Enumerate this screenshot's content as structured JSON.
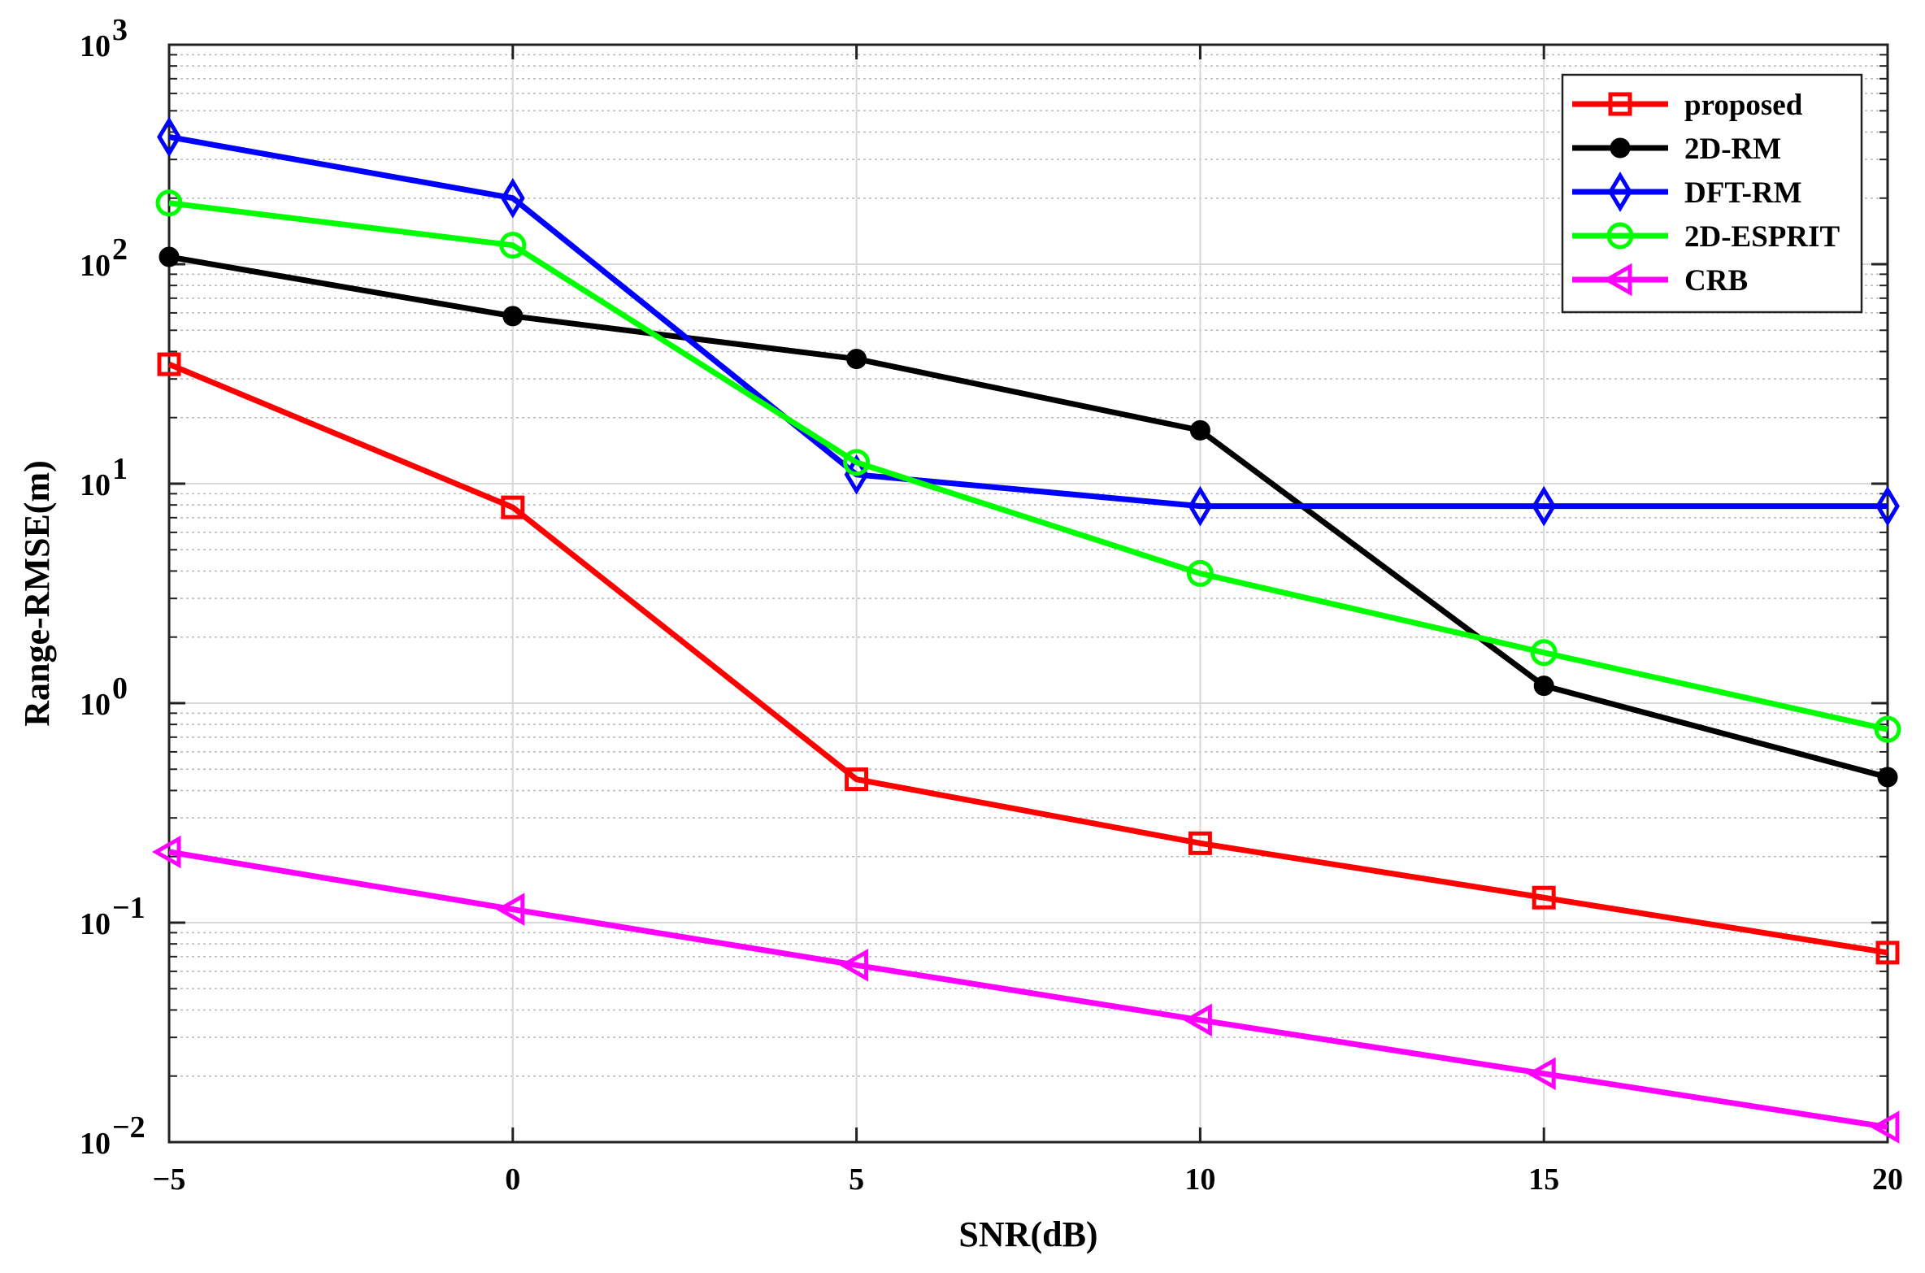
{
  "chart_data": {
    "type": "line",
    "title": "",
    "xlabel": "SNR(dB)",
    "ylabel": "Range-RMSE(m)",
    "x": [
      -5,
      0,
      5,
      10,
      15,
      20
    ],
    "xlim": [
      -5,
      20
    ],
    "xticks": [
      "−5",
      "0",
      "5",
      "10",
      "15",
      "20"
    ],
    "y_scale": "log",
    "ylim": [
      0.01,
      1000
    ],
    "yticks": [
      {
        "value": 0.01,
        "base": "10",
        "exp": "−2"
      },
      {
        "value": 0.1,
        "base": "10",
        "exp": "−1"
      },
      {
        "value": 1,
        "base": "10",
        "exp": "0"
      },
      {
        "value": 10,
        "base": "10",
        "exp": "1"
      },
      {
        "value": 100,
        "base": "10",
        "exp": "2"
      },
      {
        "value": 1000,
        "base": "10",
        "exp": "3"
      }
    ],
    "grid": true,
    "legend_position": "top-right",
    "series": [
      {
        "name": "proposed",
        "color": "#ff0000",
        "marker": "square",
        "values": [
          35,
          7.8,
          0.45,
          0.23,
          0.13,
          0.073
        ]
      },
      {
        "name": "2D-RM",
        "color": "#000000",
        "marker": "filled-circle",
        "values": [
          108,
          58,
          37,
          17.5,
          1.2,
          0.46
        ]
      },
      {
        "name": "DFT-RM",
        "color": "#0000ff",
        "marker": "diamond",
        "values": [
          380,
          200,
          11,
          7.9,
          7.9,
          7.9
        ]
      },
      {
        "name": "2D-ESPRIT",
        "color": "#00ff00",
        "marker": "circle",
        "values": [
          190,
          122,
          12.5,
          3.9,
          1.7,
          0.76
        ]
      },
      {
        "name": "CRB",
        "color": "#ff00ff",
        "marker": "triangle-left",
        "values": [
          0.21,
          0.115,
          0.064,
          0.036,
          0.0205,
          0.0117
        ]
      }
    ]
  }
}
